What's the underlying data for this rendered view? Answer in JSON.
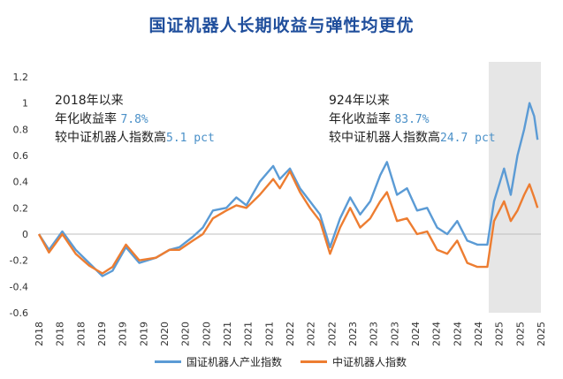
{
  "title": "国证机器人长期收益与弹性均更优",
  "annotations": [
    {
      "line1": "2018年以来",
      "line2_prefix": "年化收益率 ",
      "line2_value": "7.8%",
      "line3_prefix": "较中证机器人指数高",
      "line3_value": "5.1 pct"
    },
    {
      "line1": "924年以来",
      "line2_prefix": "年化收益率 ",
      "line2_value": "83.7%",
      "line3_prefix": "较中证机器人指数高",
      "line3_value": "24.7 pct"
    }
  ],
  "legend": [
    {
      "name": "国证机器人产业指数",
      "color": "#5b9bd5"
    },
    {
      "name": "中证机器人指数",
      "color": "#ed7d31"
    }
  ],
  "chart_data": {
    "type": "line",
    "ylim": [
      -0.6,
      1.2
    ],
    "yticks": [
      "-0.6",
      "-0.4",
      "-0.2",
      "0",
      "0.2",
      "0.4",
      "0.6",
      "0.8",
      "1",
      "1.2"
    ],
    "xticks": [
      "2018",
      "2018",
      "2018",
      "2019",
      "2019",
      "2019",
      "2020",
      "2020",
      "2020",
      "2021",
      "2021",
      "2021",
      "2022",
      "2022",
      "2022",
      "2023",
      "2023",
      "2023",
      "2024",
      "2024",
      "2024",
      "2024",
      "2025",
      "2025",
      "2025"
    ],
    "shaded_region_start": 2024.72,
    "series": [
      {
        "name": "国证机器人产业指数",
        "color": "#5b9bd5",
        "points": [
          [
            2018.0,
            0.0
          ],
          [
            2018.15,
            -0.12
          ],
          [
            2018.35,
            0.02
          ],
          [
            2018.55,
            -0.12
          ],
          [
            2018.75,
            -0.22
          ],
          [
            2018.95,
            -0.32
          ],
          [
            2019.1,
            -0.28
          ],
          [
            2019.3,
            -0.1
          ],
          [
            2019.5,
            -0.22
          ],
          [
            2019.75,
            -0.18
          ],
          [
            2019.95,
            -0.12
          ],
          [
            2020.1,
            -0.1
          ],
          [
            2020.3,
            -0.02
          ],
          [
            2020.45,
            0.05
          ],
          [
            2020.6,
            0.18
          ],
          [
            2020.8,
            0.2
          ],
          [
            2020.95,
            0.28
          ],
          [
            2021.1,
            0.22
          ],
          [
            2021.3,
            0.4
          ],
          [
            2021.5,
            0.52
          ],
          [
            2021.6,
            0.42
          ],
          [
            2021.75,
            0.5
          ],
          [
            2021.9,
            0.35
          ],
          [
            2022.05,
            0.25
          ],
          [
            2022.2,
            0.15
          ],
          [
            2022.35,
            -0.1
          ],
          [
            2022.5,
            0.12
          ],
          [
            2022.65,
            0.28
          ],
          [
            2022.8,
            0.15
          ],
          [
            2022.95,
            0.25
          ],
          [
            2023.1,
            0.45
          ],
          [
            2023.2,
            0.55
          ],
          [
            2023.35,
            0.3
          ],
          [
            2023.5,
            0.35
          ],
          [
            2023.65,
            0.18
          ],
          [
            2023.8,
            0.2
          ],
          [
            2023.95,
            0.05
          ],
          [
            2024.1,
            0.0
          ],
          [
            2024.25,
            0.1
          ],
          [
            2024.4,
            -0.05
          ],
          [
            2024.55,
            -0.08
          ],
          [
            2024.7,
            -0.08
          ],
          [
            2024.8,
            0.25
          ],
          [
            2024.95,
            0.5
          ],
          [
            2025.05,
            0.3
          ],
          [
            2025.15,
            0.6
          ],
          [
            2025.25,
            0.8
          ],
          [
            2025.33,
            1.0
          ],
          [
            2025.4,
            0.9
          ],
          [
            2025.45,
            0.72
          ]
        ]
      },
      {
        "name": "中证机器人指数",
        "color": "#ed7d31",
        "points": [
          [
            2018.0,
            0.0
          ],
          [
            2018.15,
            -0.14
          ],
          [
            2018.35,
            0.0
          ],
          [
            2018.55,
            -0.15
          ],
          [
            2018.75,
            -0.24
          ],
          [
            2018.95,
            -0.3
          ],
          [
            2019.1,
            -0.25
          ],
          [
            2019.3,
            -0.08
          ],
          [
            2019.5,
            -0.2
          ],
          [
            2019.75,
            -0.18
          ],
          [
            2019.95,
            -0.12
          ],
          [
            2020.1,
            -0.12
          ],
          [
            2020.3,
            -0.05
          ],
          [
            2020.45,
            0.0
          ],
          [
            2020.6,
            0.12
          ],
          [
            2020.8,
            0.18
          ],
          [
            2020.95,
            0.22
          ],
          [
            2021.1,
            0.2
          ],
          [
            2021.3,
            0.3
          ],
          [
            2021.5,
            0.42
          ],
          [
            2021.6,
            0.35
          ],
          [
            2021.75,
            0.48
          ],
          [
            2021.9,
            0.32
          ],
          [
            2022.05,
            0.2
          ],
          [
            2022.2,
            0.1
          ],
          [
            2022.35,
            -0.15
          ],
          [
            2022.5,
            0.05
          ],
          [
            2022.65,
            0.2
          ],
          [
            2022.8,
            0.05
          ],
          [
            2022.95,
            0.12
          ],
          [
            2023.1,
            0.25
          ],
          [
            2023.2,
            0.32
          ],
          [
            2023.35,
            0.1
          ],
          [
            2023.5,
            0.12
          ],
          [
            2023.65,
            0.0
          ],
          [
            2023.8,
            0.02
          ],
          [
            2023.95,
            -0.12
          ],
          [
            2024.1,
            -0.15
          ],
          [
            2024.25,
            -0.05
          ],
          [
            2024.4,
            -0.22
          ],
          [
            2024.55,
            -0.25
          ],
          [
            2024.7,
            -0.25
          ],
          [
            2024.8,
            0.1
          ],
          [
            2024.95,
            0.25
          ],
          [
            2025.05,
            0.1
          ],
          [
            2025.15,
            0.18
          ],
          [
            2025.25,
            0.3
          ],
          [
            2025.33,
            0.38
          ],
          [
            2025.4,
            0.28
          ],
          [
            2025.45,
            0.2
          ]
        ]
      }
    ]
  }
}
